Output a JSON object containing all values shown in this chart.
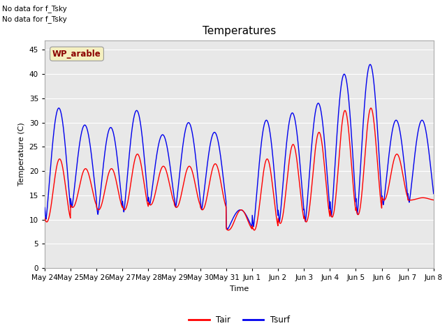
{
  "title": "Temperatures",
  "xlabel": "Time",
  "ylabel": "Temperature (C)",
  "ylim": [
    0,
    47
  ],
  "yticks": [
    0,
    5,
    10,
    15,
    20,
    25,
    30,
    35,
    40,
    45
  ],
  "text_top_left": [
    "No data for f_Tsky",
    "No data for f_Tsky"
  ],
  "wp_label": "WP_arable",
  "legend": [
    "Tair",
    "Tsurf"
  ],
  "line_colors": [
    "#ff0000",
    "#0000ee"
  ],
  "figure_bg": "#ffffff",
  "axes_bg": "#e8e8e8",
  "grid_color": "#ffffff",
  "x_labels": [
    "May 24",
    "May 25",
    "May 26",
    "May 27",
    "May 28",
    "May 29",
    "May 30",
    "May 31",
    "Jun 1",
    "Jun 2",
    "Jun 3",
    "Jun 4",
    "Jun 5",
    "Jun 6",
    "Jun 7",
    "Jun 8"
  ],
  "n_days": 15,
  "points_per_day": 96,
  "day_maxes_air": [
    22.5,
    20.5,
    20.5,
    23.5,
    21.0,
    21.0,
    21.5,
    12.0,
    22.5,
    25.5,
    28.0,
    32.5,
    33.0,
    23.5,
    14.5
  ],
  "day_mins_air": [
    9.5,
    12.5,
    12.0,
    12.0,
    13.0,
    12.5,
    12.0,
    7.8,
    7.8,
    9.2,
    9.5,
    10.5,
    11.0,
    14.0,
    14.0
  ],
  "day_maxes_surf": [
    33.0,
    29.5,
    29.0,
    32.5,
    27.5,
    30.0,
    28.0,
    12.0,
    30.5,
    32.0,
    34.0,
    40.0,
    42.0,
    30.5,
    30.5
  ],
  "day_mins_surf": [
    10.0,
    12.5,
    11.0,
    11.5,
    13.0,
    12.5,
    12.0,
    8.0,
    8.5,
    9.5,
    9.5,
    10.5,
    11.0,
    13.0,
    13.5
  ]
}
